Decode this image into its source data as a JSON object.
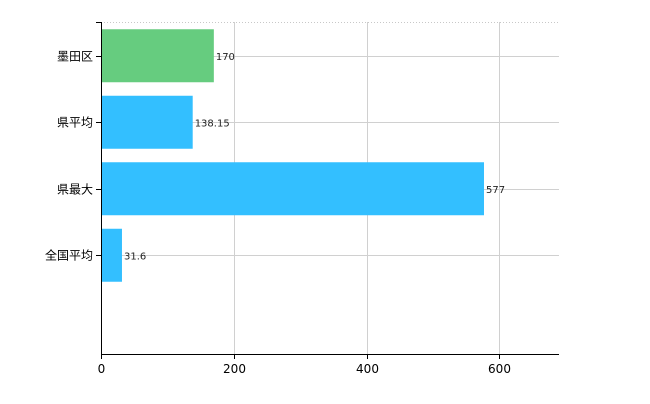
{
  "chart_data": {
    "type": "bar",
    "orientation": "horizontal",
    "categories": [
      "墨田区",
      "県平均",
      "県最大",
      "全国平均"
    ],
    "values": [
      170,
      138.15,
      577,
      31.6
    ],
    "data_labels": [
      "170",
      "138.15",
      "577",
      "31.6"
    ],
    "bar_colors": [
      "#66cc7f",
      "#33bfff",
      "#33bfff",
      "#33bfff"
    ],
    "xlim": [
      0,
      690
    ],
    "x_ticks": [
      0,
      200,
      400,
      600
    ],
    "x_tick_labels": [
      "0",
      "200",
      "400",
      "600"
    ],
    "grid": true,
    "title": "",
    "xlabel": "",
    "ylabel": ""
  }
}
